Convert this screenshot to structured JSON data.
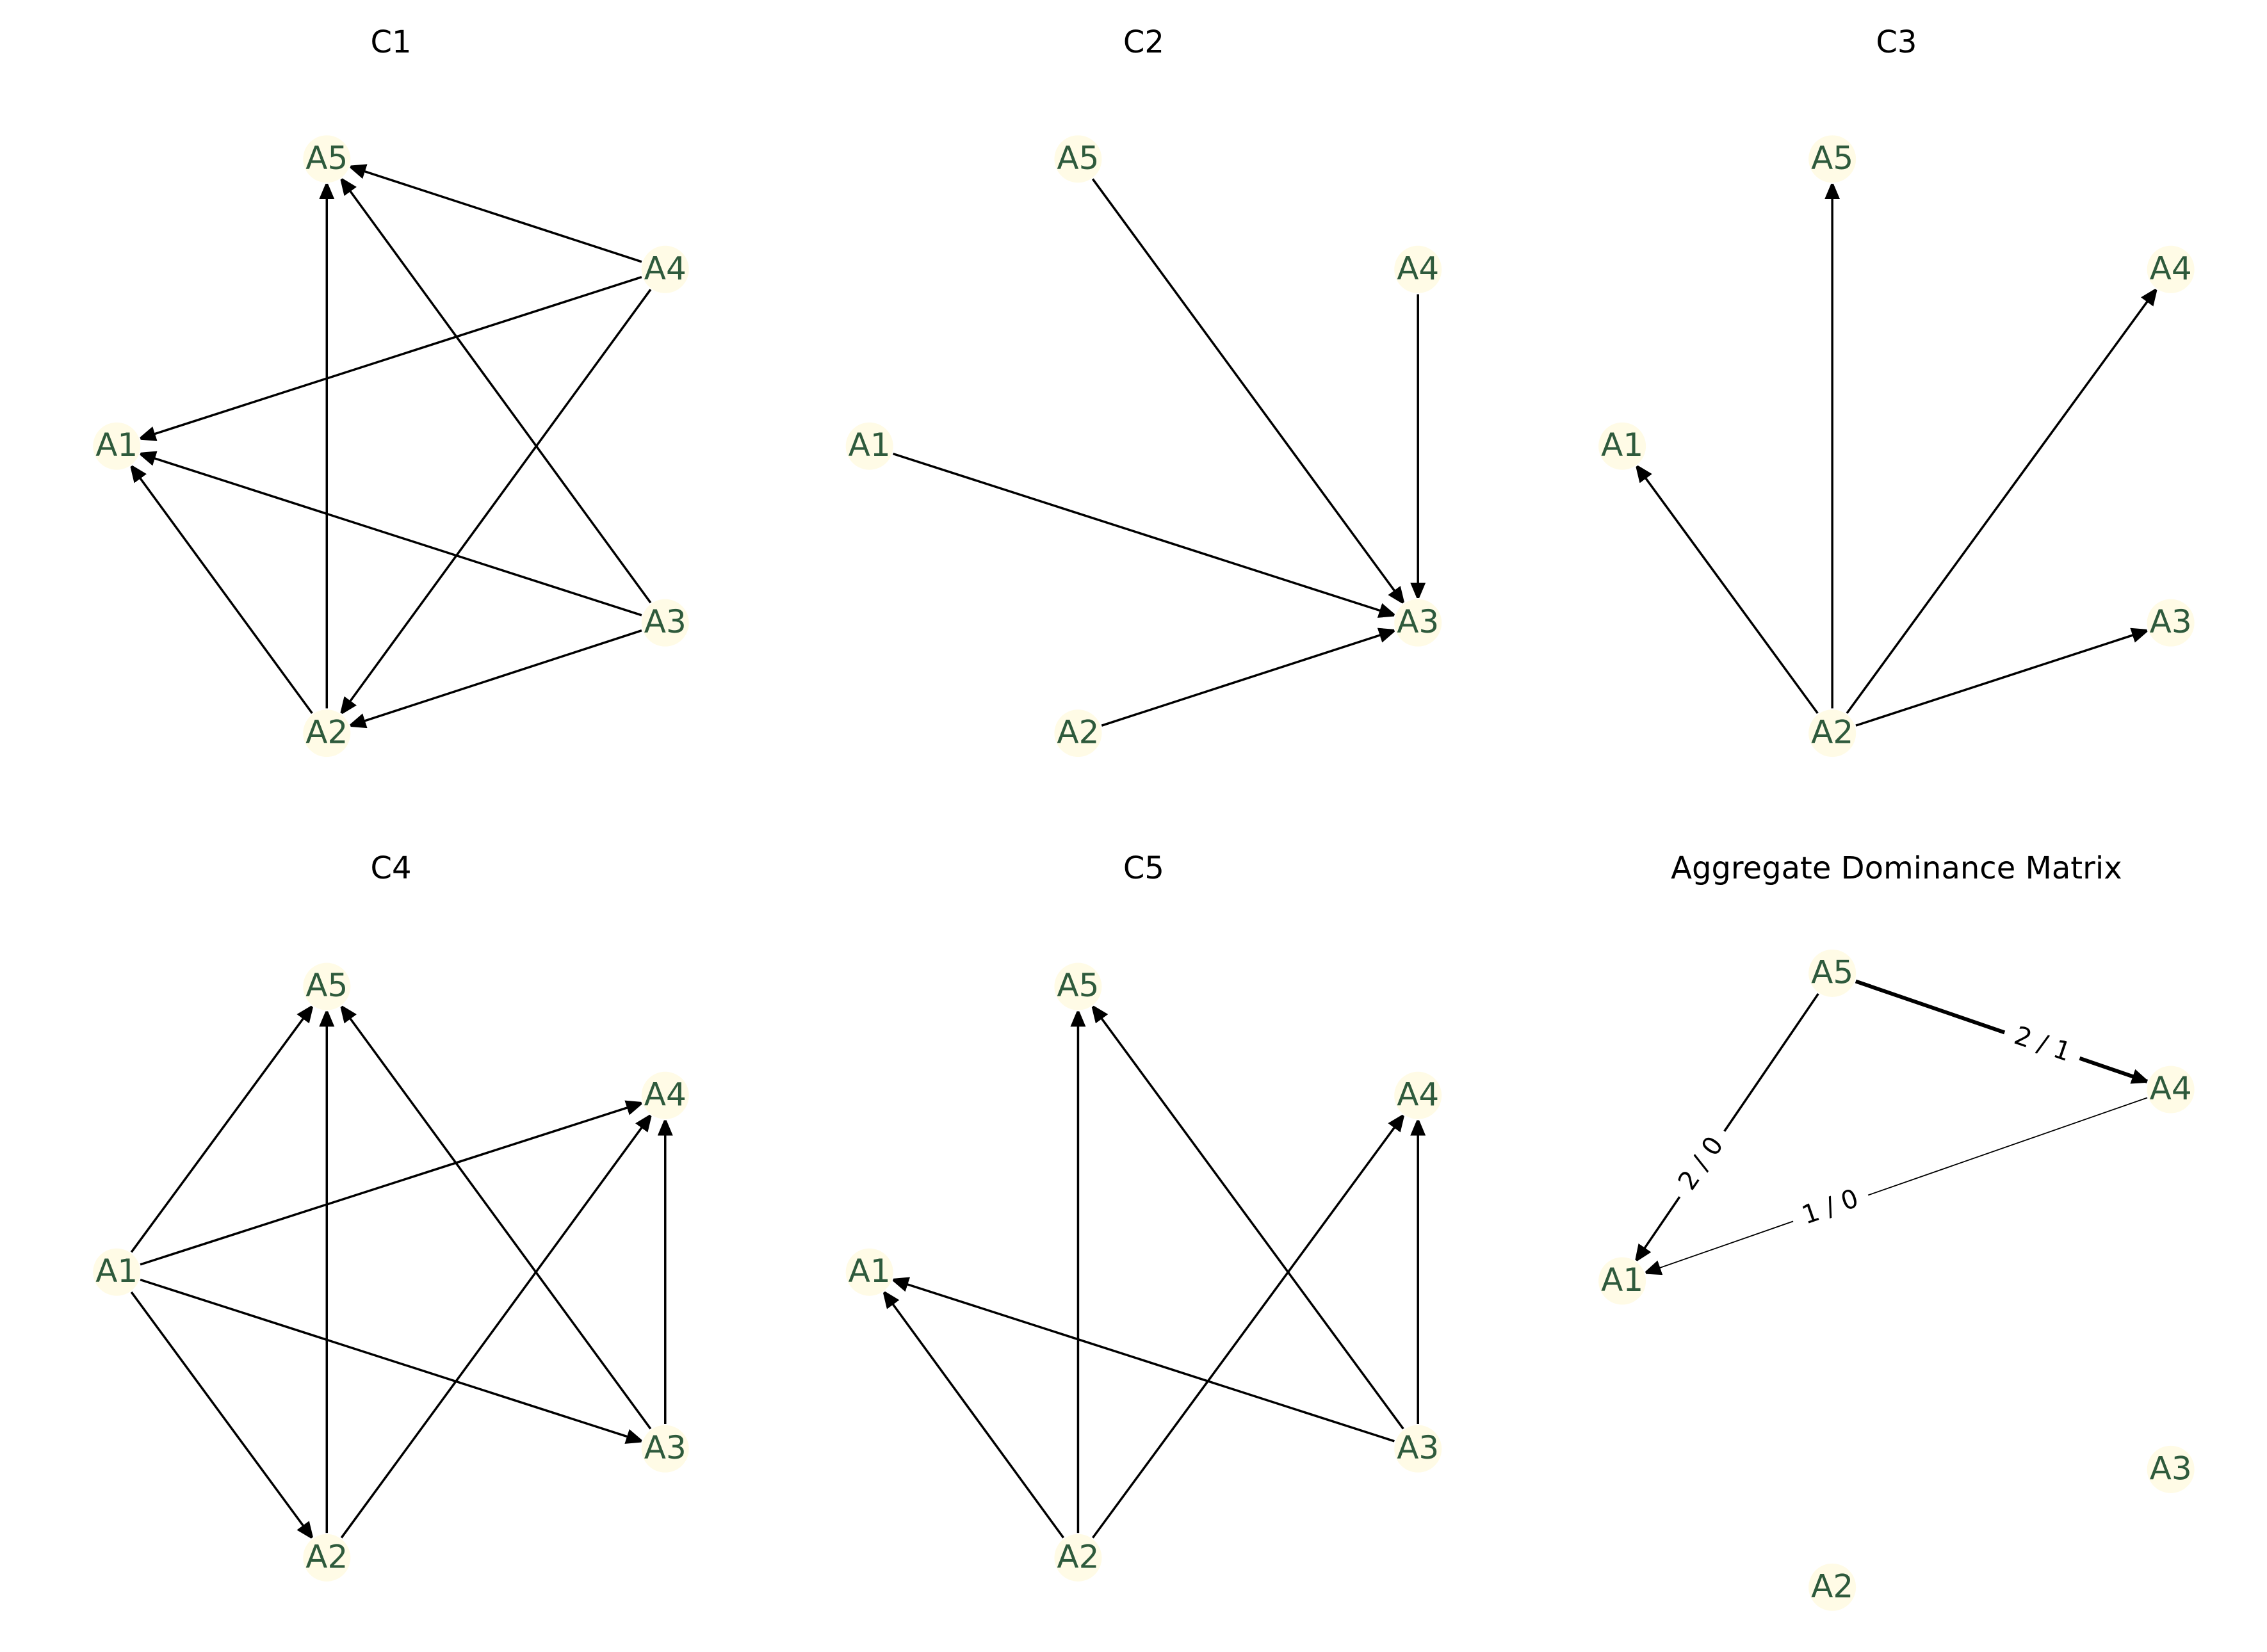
{
  "figure": {
    "colors": {
      "node_fill": "#fffbe6",
      "node_label": "#2e5a3c",
      "edge": "#000000",
      "background": "#ffffff"
    },
    "panels": [
      {
        "title": "C1",
        "nodes": [
          "A1",
          "A2",
          "A3",
          "A4",
          "A5"
        ],
        "edges": [
          {
            "from": "A4",
            "to": "A5"
          },
          {
            "from": "A4",
            "to": "A1"
          },
          {
            "from": "A4",
            "to": "A2"
          },
          {
            "from": "A3",
            "to": "A5"
          },
          {
            "from": "A3",
            "to": "A1"
          },
          {
            "from": "A3",
            "to": "A2"
          },
          {
            "from": "A2",
            "to": "A1"
          },
          {
            "from": "A2",
            "to": "A5"
          }
        ]
      },
      {
        "title": "C2",
        "nodes": [
          "A1",
          "A2",
          "A3",
          "A4",
          "A5"
        ],
        "edges": [
          {
            "from": "A5",
            "to": "A3"
          },
          {
            "from": "A4",
            "to": "A3"
          },
          {
            "from": "A1",
            "to": "A3"
          },
          {
            "from": "A2",
            "to": "A3"
          }
        ]
      },
      {
        "title": "C3",
        "nodes": [
          "A1",
          "A2",
          "A3",
          "A4",
          "A5"
        ],
        "edges": [
          {
            "from": "A2",
            "to": "A1"
          },
          {
            "from": "A2",
            "to": "A5"
          },
          {
            "from": "A2",
            "to": "A4"
          },
          {
            "from": "A2",
            "to": "A3"
          }
        ]
      },
      {
        "title": "C4",
        "nodes": [
          "A1",
          "A2",
          "A3",
          "A4",
          "A5"
        ],
        "edges": [
          {
            "from": "A1",
            "to": "A5"
          },
          {
            "from": "A1",
            "to": "A4"
          },
          {
            "from": "A1",
            "to": "A3"
          },
          {
            "from": "A1",
            "to": "A2"
          },
          {
            "from": "A2",
            "to": "A5"
          },
          {
            "from": "A2",
            "to": "A4"
          },
          {
            "from": "A3",
            "to": "A5"
          },
          {
            "from": "A3",
            "to": "A4"
          }
        ]
      },
      {
        "title": "C5",
        "nodes": [
          "A1",
          "A2",
          "A3",
          "A4",
          "A5"
        ],
        "edges": [
          {
            "from": "A2",
            "to": "A1"
          },
          {
            "from": "A2",
            "to": "A5"
          },
          {
            "from": "A2",
            "to": "A4"
          },
          {
            "from": "A3",
            "to": "A1"
          },
          {
            "from": "A3",
            "to": "A5"
          },
          {
            "from": "A3",
            "to": "A4"
          }
        ]
      },
      {
        "title": "Aggregate Dominance Matrix",
        "nodes": [
          "A1",
          "A2",
          "A3",
          "A4",
          "A5"
        ],
        "edges": [
          {
            "from": "A5",
            "to": "A4",
            "label": "2 / 1",
            "weight": "heavy"
          },
          {
            "from": "A5",
            "to": "A1",
            "label": "2 / 0",
            "weight": "medium"
          },
          {
            "from": "A4",
            "to": "A1",
            "label": "1 / 0",
            "weight": "light"
          }
        ]
      }
    ]
  }
}
